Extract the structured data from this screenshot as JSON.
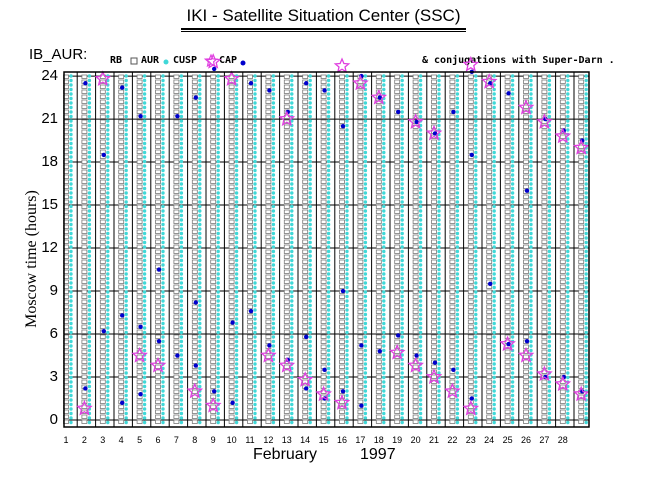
{
  "header": {
    "title": "IKI - Satellite Situation Center (SSC)",
    "station": "IB_AUR:",
    "legend": [
      "RB",
      "AUR",
      "CUSP",
      "CAP"
    ],
    "conjugations": "& conjugations with Super-Darn ."
  },
  "chart_data": {
    "type": "scatter",
    "title": "IKI - Satellite Situation Center (SSC)",
    "ylabel": "Moscow time (hours)",
    "xlabel": "February",
    "year": "1997",
    "x_ticks": [
      "1",
      "2",
      "3",
      "4",
      "5",
      "6",
      "7",
      "8",
      "9",
      "10",
      "11",
      "12",
      "13",
      "14",
      "15",
      "16",
      "17",
      "18",
      "19",
      "20",
      "21",
      "22",
      "23",
      "24",
      "25",
      "26",
      "27",
      "28"
    ],
    "y_ticks": [
      "0",
      "3",
      "6",
      "9",
      "12",
      "15",
      "18",
      "21",
      "24"
    ],
    "ylim": [
      0,
      25
    ],
    "xlim": [
      1,
      29
    ],
    "grid": true,
    "legend_position": "top",
    "colors": {
      "RB": "#808080",
      "AUR": "#ffffff",
      "CUSP": "#40d8d8",
      "CAP": "#0000cc",
      "SD": "#e040e0"
    },
    "series": [
      {
        "name": "CAP",
        "points": [
          [
            2,
            23.5
          ],
          [
            2,
            2.2
          ],
          [
            3,
            18.5
          ],
          [
            3,
            6.2
          ],
          [
            4,
            23.2
          ],
          [
            4,
            7.3
          ],
          [
            4,
            1.2
          ],
          [
            5,
            21.2
          ],
          [
            5,
            6.5
          ],
          [
            5,
            1.8
          ],
          [
            6,
            10.5
          ],
          [
            6,
            5.5
          ],
          [
            7,
            21.2
          ],
          [
            7,
            4.5
          ],
          [
            8,
            22.5
          ],
          [
            8,
            8.2
          ],
          [
            8,
            3.8
          ],
          [
            9,
            24.5
          ],
          [
            9,
            2.0
          ],
          [
            10,
            6.8
          ],
          [
            10,
            1.2
          ],
          [
            11,
            23.5
          ],
          [
            11,
            7.6
          ],
          [
            12,
            23.0
          ],
          [
            12,
            5.2
          ],
          [
            13,
            21.5
          ],
          [
            13,
            4.2
          ],
          [
            14,
            23.5
          ],
          [
            14,
            5.8
          ],
          [
            14,
            2.2
          ],
          [
            15,
            23.0
          ],
          [
            15,
            3.5
          ],
          [
            15,
            1.5
          ],
          [
            16,
            20.5
          ],
          [
            16,
            9.0
          ],
          [
            16,
            2.0
          ],
          [
            17,
            24.0
          ],
          [
            17,
            5.2
          ],
          [
            17,
            1.0
          ],
          [
            18,
            22.5
          ],
          [
            18,
            4.8
          ],
          [
            19,
            21.5
          ],
          [
            19,
            5.9
          ],
          [
            20,
            20.8
          ],
          [
            20,
            4.5
          ],
          [
            21,
            20.0
          ],
          [
            21,
            4.0
          ],
          [
            22,
            21.5
          ],
          [
            22,
            3.5
          ],
          [
            23,
            24.3
          ],
          [
            23,
            18.5
          ],
          [
            23,
            1.5
          ],
          [
            24,
            23.5
          ],
          [
            24,
            9.5
          ],
          [
            25,
            22.8
          ],
          [
            25,
            5.3
          ],
          [
            26,
            16.0
          ],
          [
            26,
            5.5
          ],
          [
            27,
            21.0
          ],
          [
            27,
            3.0
          ],
          [
            28,
            20.2
          ],
          [
            28,
            3.0
          ],
          [
            29,
            19.5
          ],
          [
            29,
            2.0
          ]
        ]
      },
      {
        "name": "Super-Darn",
        "points": [
          [
            2,
            0.8
          ],
          [
            3,
            23.8
          ],
          [
            5,
            4.5
          ],
          [
            6,
            3.8
          ],
          [
            8,
            2.0
          ],
          [
            9,
            25.0
          ],
          [
            9,
            1.0
          ],
          [
            10,
            23.8
          ],
          [
            12,
            4.5
          ],
          [
            13,
            21.0
          ],
          [
            13,
            3.8
          ],
          [
            14,
            2.8
          ],
          [
            15,
            1.8
          ],
          [
            16,
            24.7
          ],
          [
            16,
            1.2
          ],
          [
            17,
            23.5
          ],
          [
            18,
            22.5
          ],
          [
            19,
            4.7
          ],
          [
            20,
            20.8
          ],
          [
            20,
            3.8
          ],
          [
            21,
            20.0
          ],
          [
            21,
            3.0
          ],
          [
            22,
            2.0
          ],
          [
            23,
            24.8
          ],
          [
            23,
            0.8
          ],
          [
            24,
            23.6
          ],
          [
            25,
            5.3
          ],
          [
            26,
            21.8
          ],
          [
            26,
            4.5
          ],
          [
            27,
            20.8
          ],
          [
            27,
            3.2
          ],
          [
            28,
            19.8
          ],
          [
            28,
            2.5
          ],
          [
            29,
            19.0
          ],
          [
            29,
            1.8
          ]
        ]
      }
    ]
  }
}
